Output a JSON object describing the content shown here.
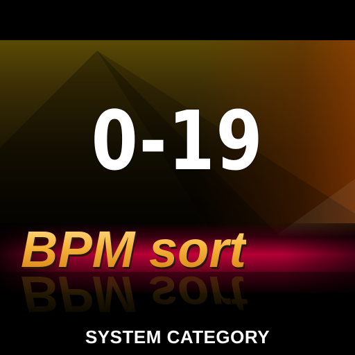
{
  "range_label": "0-19",
  "title": "BPM sort",
  "caption": "SYSTEM CATEGORY",
  "colors": {
    "background": "#000000",
    "title_gold": "#f0a020",
    "stripe_red": "#c4003a",
    "label_white": "#ffffff",
    "art_olive": "#5a4a05"
  }
}
